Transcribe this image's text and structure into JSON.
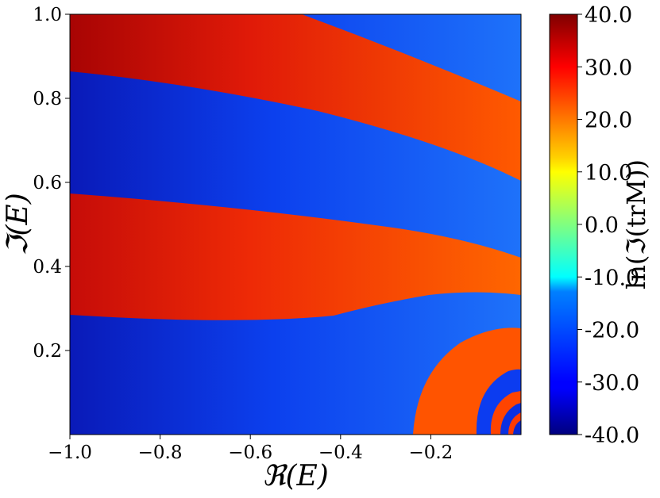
{
  "chart_data": {
    "type": "heatmap",
    "title": "",
    "xlabel": "ℜ(E)",
    "ylabel": "ℑ(E)",
    "colorbar_label": "ln(ℑ(trM))",
    "xlim": [
      -1.0,
      0.0
    ],
    "ylim": [
      0.0,
      1.0
    ],
    "x_ticks": [
      {
        "value": -1.0,
        "label": "−1.0"
      },
      {
        "value": -0.8,
        "label": "−0.8"
      },
      {
        "value": -0.6,
        "label": "−0.6"
      },
      {
        "value": -0.4,
        "label": "−0.4"
      },
      {
        "value": -0.2,
        "label": "−0.2"
      }
    ],
    "y_ticks": [
      {
        "value": 0.2,
        "label": "0.2"
      },
      {
        "value": 0.4,
        "label": "0.4"
      },
      {
        "value": 0.6,
        "label": "0.6"
      },
      {
        "value": 0.8,
        "label": "0.8"
      },
      {
        "value": 1.0,
        "label": "1.0"
      }
    ],
    "colorbar_range": [
      -40.0,
      40.0
    ],
    "colorbar_ticks": [
      {
        "value": 40.0,
        "label": "40.0"
      },
      {
        "value": 30.0,
        "label": "30.0"
      },
      {
        "value": 20.0,
        "label": "20.0"
      },
      {
        "value": 10.0,
        "label": "10.0"
      },
      {
        "value": 0.0,
        "label": "0.0"
      },
      {
        "value": -10.0,
        "label": "-10.0"
      },
      {
        "value": -20.0,
        "label": "-20.0"
      },
      {
        "value": -30.0,
        "label": "-30.0"
      },
      {
        "value": -40.0,
        "label": "-40.0"
      }
    ],
    "colormap": "jet",
    "grid": false
  }
}
